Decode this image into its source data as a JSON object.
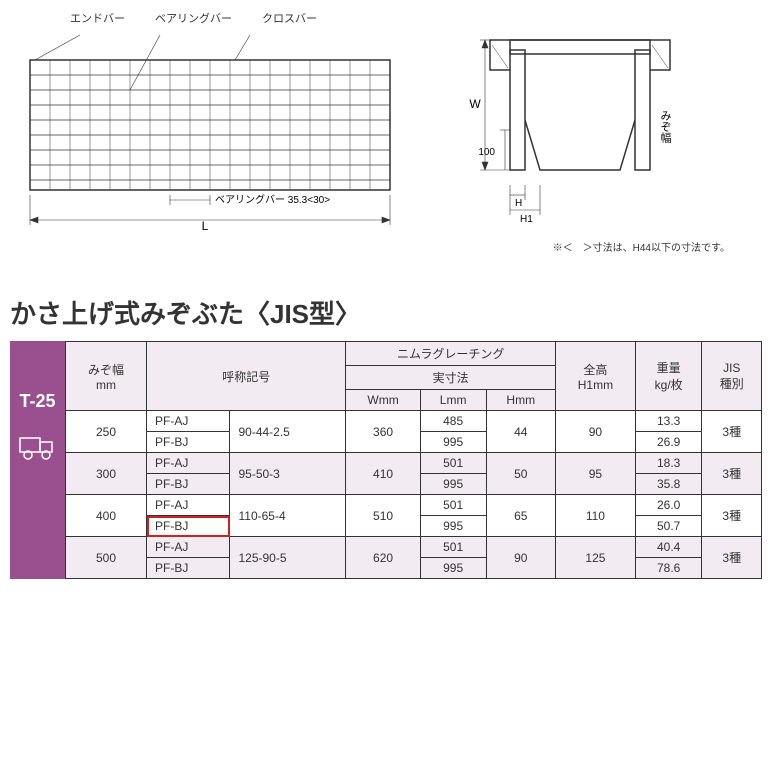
{
  "diagram": {
    "labels": {
      "endbar": "エンドバー",
      "bearingbar": "ベアリングバー",
      "crossbar": "クロスバー",
      "bearingbar_pitch": "ベアリングバー 35.3<30>",
      "L": "L",
      "W": "W",
      "H": "H",
      "H1": "H1",
      "hundred": "100",
      "mizo": "みぞ幅"
    },
    "footnote": "※＜　＞寸法は、H44以下の寸法です。"
  },
  "title": "かさ上げ式みぞぶた〈JIS型〉",
  "side": {
    "label": "T-25"
  },
  "table": {
    "headers": {
      "mizo": "みぞ幅\nmm",
      "code": "呼称記号",
      "nimura": "ニムラグレーチング",
      "jissun": "実寸法",
      "W": "Wmm",
      "L": "Lmm",
      "H": "Hmm",
      "H1": "全高\nH1mm",
      "weight": "重量\nkg/枚",
      "jis": "JIS\n種別"
    },
    "rows": [
      {
        "mizo": "250",
        "pfA": "PF-AJ",
        "pfB": "PF-BJ",
        "code": "90-44-2.5",
        "W": "360",
        "LA": "485",
        "LB": "995",
        "H": "44",
        "H1": "90",
        "wA": "13.3",
        "wB": "26.9",
        "jis": "3種",
        "shade": false
      },
      {
        "mizo": "300",
        "pfA": "PF-AJ",
        "pfB": "PF-BJ",
        "code": "95-50-3",
        "W": "410",
        "LA": "501",
        "LB": "995",
        "H": "50",
        "H1": "95",
        "wA": "18.3",
        "wB": "35.8",
        "jis": "3種",
        "shade": true
      },
      {
        "mizo": "400",
        "pfA": "PF-AJ",
        "pfB": "PF-BJ",
        "code": "110-65-4",
        "W": "510",
        "LA": "501",
        "LB": "995",
        "H": "65",
        "H1": "110",
        "wA": "26.0",
        "wB": "50.7",
        "jis": "3種",
        "shade": false,
        "highlightB": true
      },
      {
        "mizo": "500",
        "pfA": "PF-AJ",
        "pfB": "PF-BJ",
        "code": "125-90-5",
        "W": "620",
        "LA": "501",
        "LB": "995",
        "H": "90",
        "H1": "125",
        "wA": "40.4",
        "wB": "78.6",
        "jis": "3種",
        "shade": true
      }
    ]
  },
  "style": {
    "accent": "#9a4f8e",
    "header_bg": "#f2ebf1",
    "border": "#333333",
    "highlight": "#d02020",
    "text": "#333333",
    "bg": "#ffffff"
  }
}
